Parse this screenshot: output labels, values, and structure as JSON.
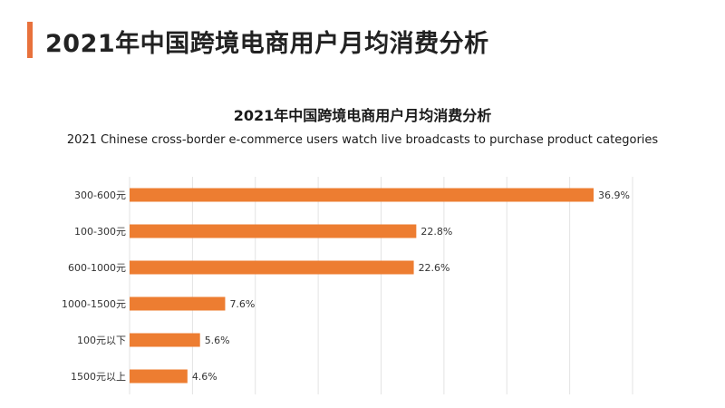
{
  "page": {
    "title": "2021年中国跨境电商用户月均消费分析"
  },
  "colors": {
    "accent": "#e8713c",
    "bar": "#ed7d31"
  },
  "chart_data": {
    "type": "bar",
    "orientation": "horizontal",
    "title": "2021年中国跨境电商用户月均消费分析",
    "subtitle": "2021 Chinese cross-border e-commerce users watch live broadcasts to purchase product categories",
    "categories": [
      "300-600元",
      "100-300元",
      "600-1000元",
      "1000-1500元",
      "100元以下",
      "1500元以上"
    ],
    "values": [
      36.9,
      22.8,
      22.6,
      7.6,
      5.6,
      4.6
    ],
    "value_labels": [
      "36.9%",
      "22.8%",
      "22.6%",
      "7.6%",
      "5.6%",
      "4.6%"
    ],
    "xlim": [
      0,
      40
    ],
    "grid": true,
    "legend": "none"
  }
}
